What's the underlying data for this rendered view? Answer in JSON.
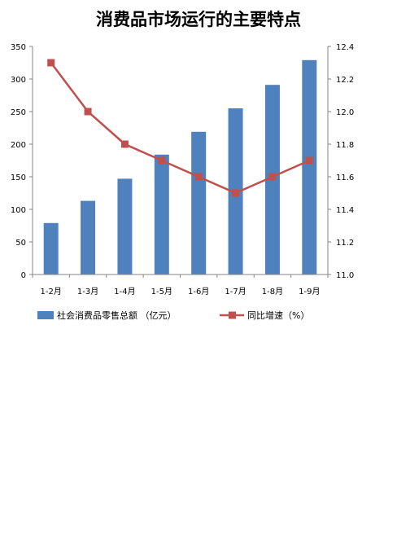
{
  "chart_data": {
    "type": "bar",
    "title": "消费品市场运行的主要特点",
    "categories": [
      "1-2月",
      "1-3月",
      "1-4月",
      "1-5月",
      "1-6月",
      "1-7月",
      "1-8月",
      "1-9月"
    ],
    "series": [
      {
        "name": "社会消费品零售总额 （亿元）",
        "type": "bar",
        "axis": "left",
        "color": "#4F81BD",
        "values": [
          79,
          113,
          147,
          184,
          219,
          255,
          291,
          329
        ]
      },
      {
        "name": "同比增速（%）",
        "type": "line",
        "axis": "right",
        "color": "#C0504D",
        "values": [
          12.3,
          12.0,
          11.8,
          11.7,
          11.6,
          11.5,
          11.6,
          11.7
        ]
      }
    ],
    "ylim": [
      0,
      350
    ],
    "yticks": [
      "0",
      "50",
      "100",
      "150",
      "200",
      "250",
      "300",
      "350"
    ],
    "y2lim": [
      11.0,
      12.4
    ],
    "y2ticks": [
      "11.0",
      "11.2",
      "11.4",
      "11.6",
      "11.8",
      "12.0",
      "12.2",
      "12.4"
    ],
    "grid": false,
    "legend": "bottom"
  }
}
